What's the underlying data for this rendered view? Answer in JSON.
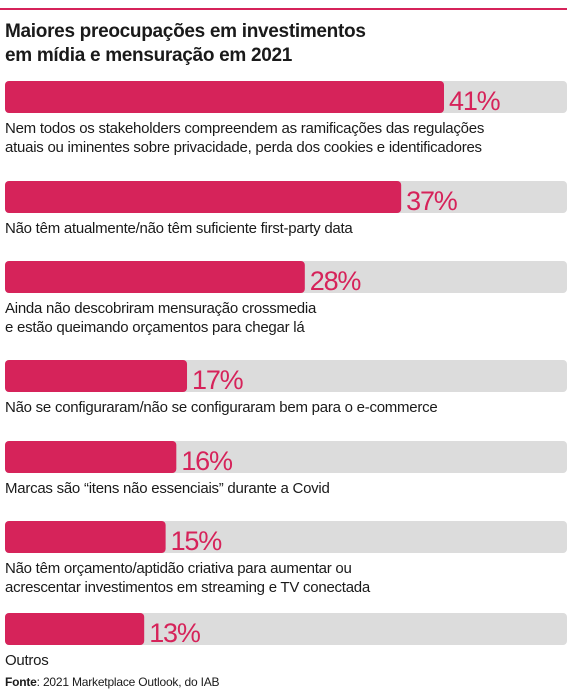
{
  "colors": {
    "accent": "#d6235a",
    "track": "#dcdcdc",
    "text": "#1a1a1a"
  },
  "title_lines": [
    "Maiores preocupações em investimentos",
    "em mídia e mensuração em 2021"
  ],
  "source": {
    "label": "Fonte",
    "text": ": 2021 Marketplace Outlook, do IAB"
  },
  "chart_data": {
    "type": "bar",
    "orientation": "horizontal",
    "title": "Maiores preocupações em investimentos em mídia e mensuração em 2021",
    "xlim": [
      0,
      100
    ],
    "grid": false,
    "legend": "none",
    "bars": [
      {
        "value": 41,
        "value_label": "41%",
        "label_lines": [
          "Nem todos os stakeholders compreendem as ramificações das regulações",
          "atuais ou iminentes sobre privacidade, perda dos cookies e identificadores"
        ]
      },
      {
        "value": 37,
        "value_label": "37%",
        "label_lines": [
          "Não têm atualmente/não têm suficiente first-party data"
        ]
      },
      {
        "value": 28,
        "value_label": "28%",
        "label_lines": [
          "Ainda não descobriram mensuração crossmedia",
          "e estão queimando orçamentos para chegar lá"
        ]
      },
      {
        "value": 17,
        "value_label": "17%",
        "label_lines": [
          "Não se configuraram/não se configuraram bem para o e-commerce"
        ]
      },
      {
        "value": 16,
        "value_label": "16%",
        "label_lines": [
          "Marcas são “itens não essenciais” durante a Covid"
        ]
      },
      {
        "value": 15,
        "value_label": "15%",
        "label_lines": [
          "Não têm orçamento/aptidão criativa para aumentar ou",
          "acrescentar investimentos em streaming e TV conectada"
        ]
      },
      {
        "value": 13,
        "value_label": "13%",
        "label_lines": [
          "Outros"
        ]
      }
    ]
  }
}
